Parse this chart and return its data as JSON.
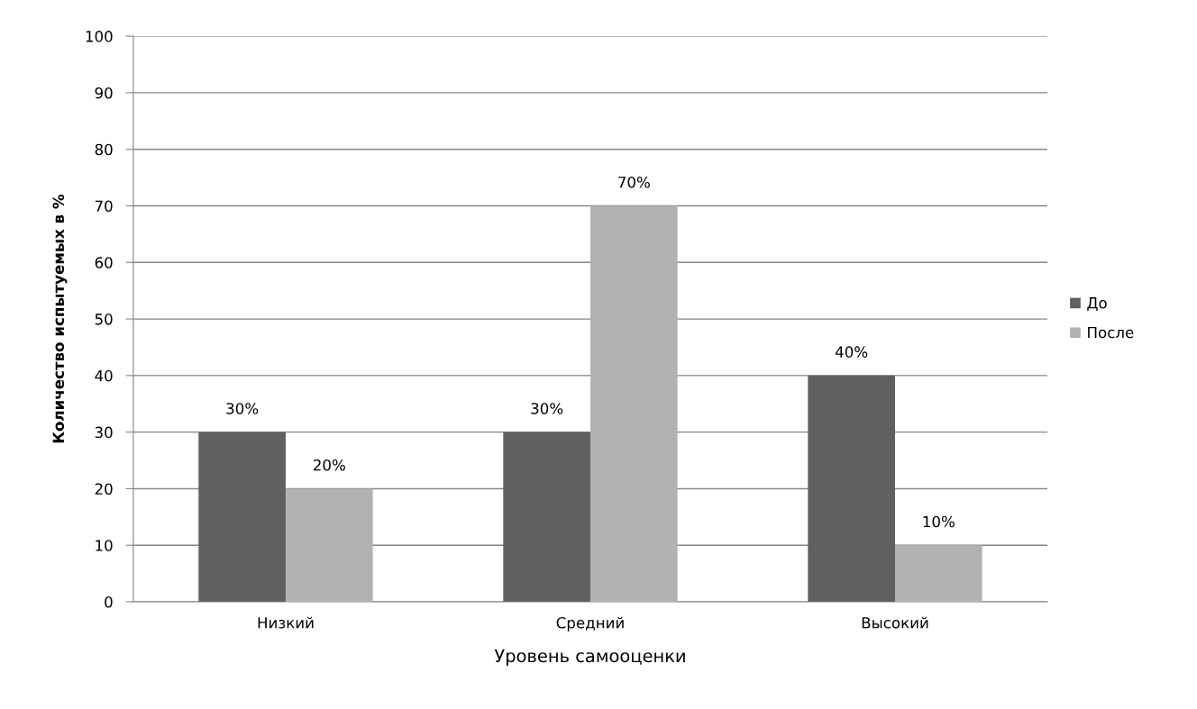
{
  "chart_data": {
    "type": "bar",
    "categories": [
      "Низкий",
      "Средний",
      "Высокий"
    ],
    "xlabel": "Уровень самооценки",
    "ylabel": "Количество испытуемых в %",
    "ylim": [
      0,
      100
    ],
    "yticks": [
      0,
      10,
      20,
      30,
      40,
      50,
      60,
      70,
      80,
      90,
      100
    ],
    "grid": "y",
    "legend": "right",
    "series": [
      {
        "name": "До",
        "color": "#606060",
        "values": [
          30,
          30,
          40
        ],
        "value_labels": [
          "30%",
          "30%",
          "40%"
        ]
      },
      {
        "name": "После",
        "color": "#b2b2b2",
        "values": [
          20,
          70,
          10
        ],
        "value_labels": [
          "20%",
          "70%",
          "10%"
        ]
      }
    ]
  }
}
